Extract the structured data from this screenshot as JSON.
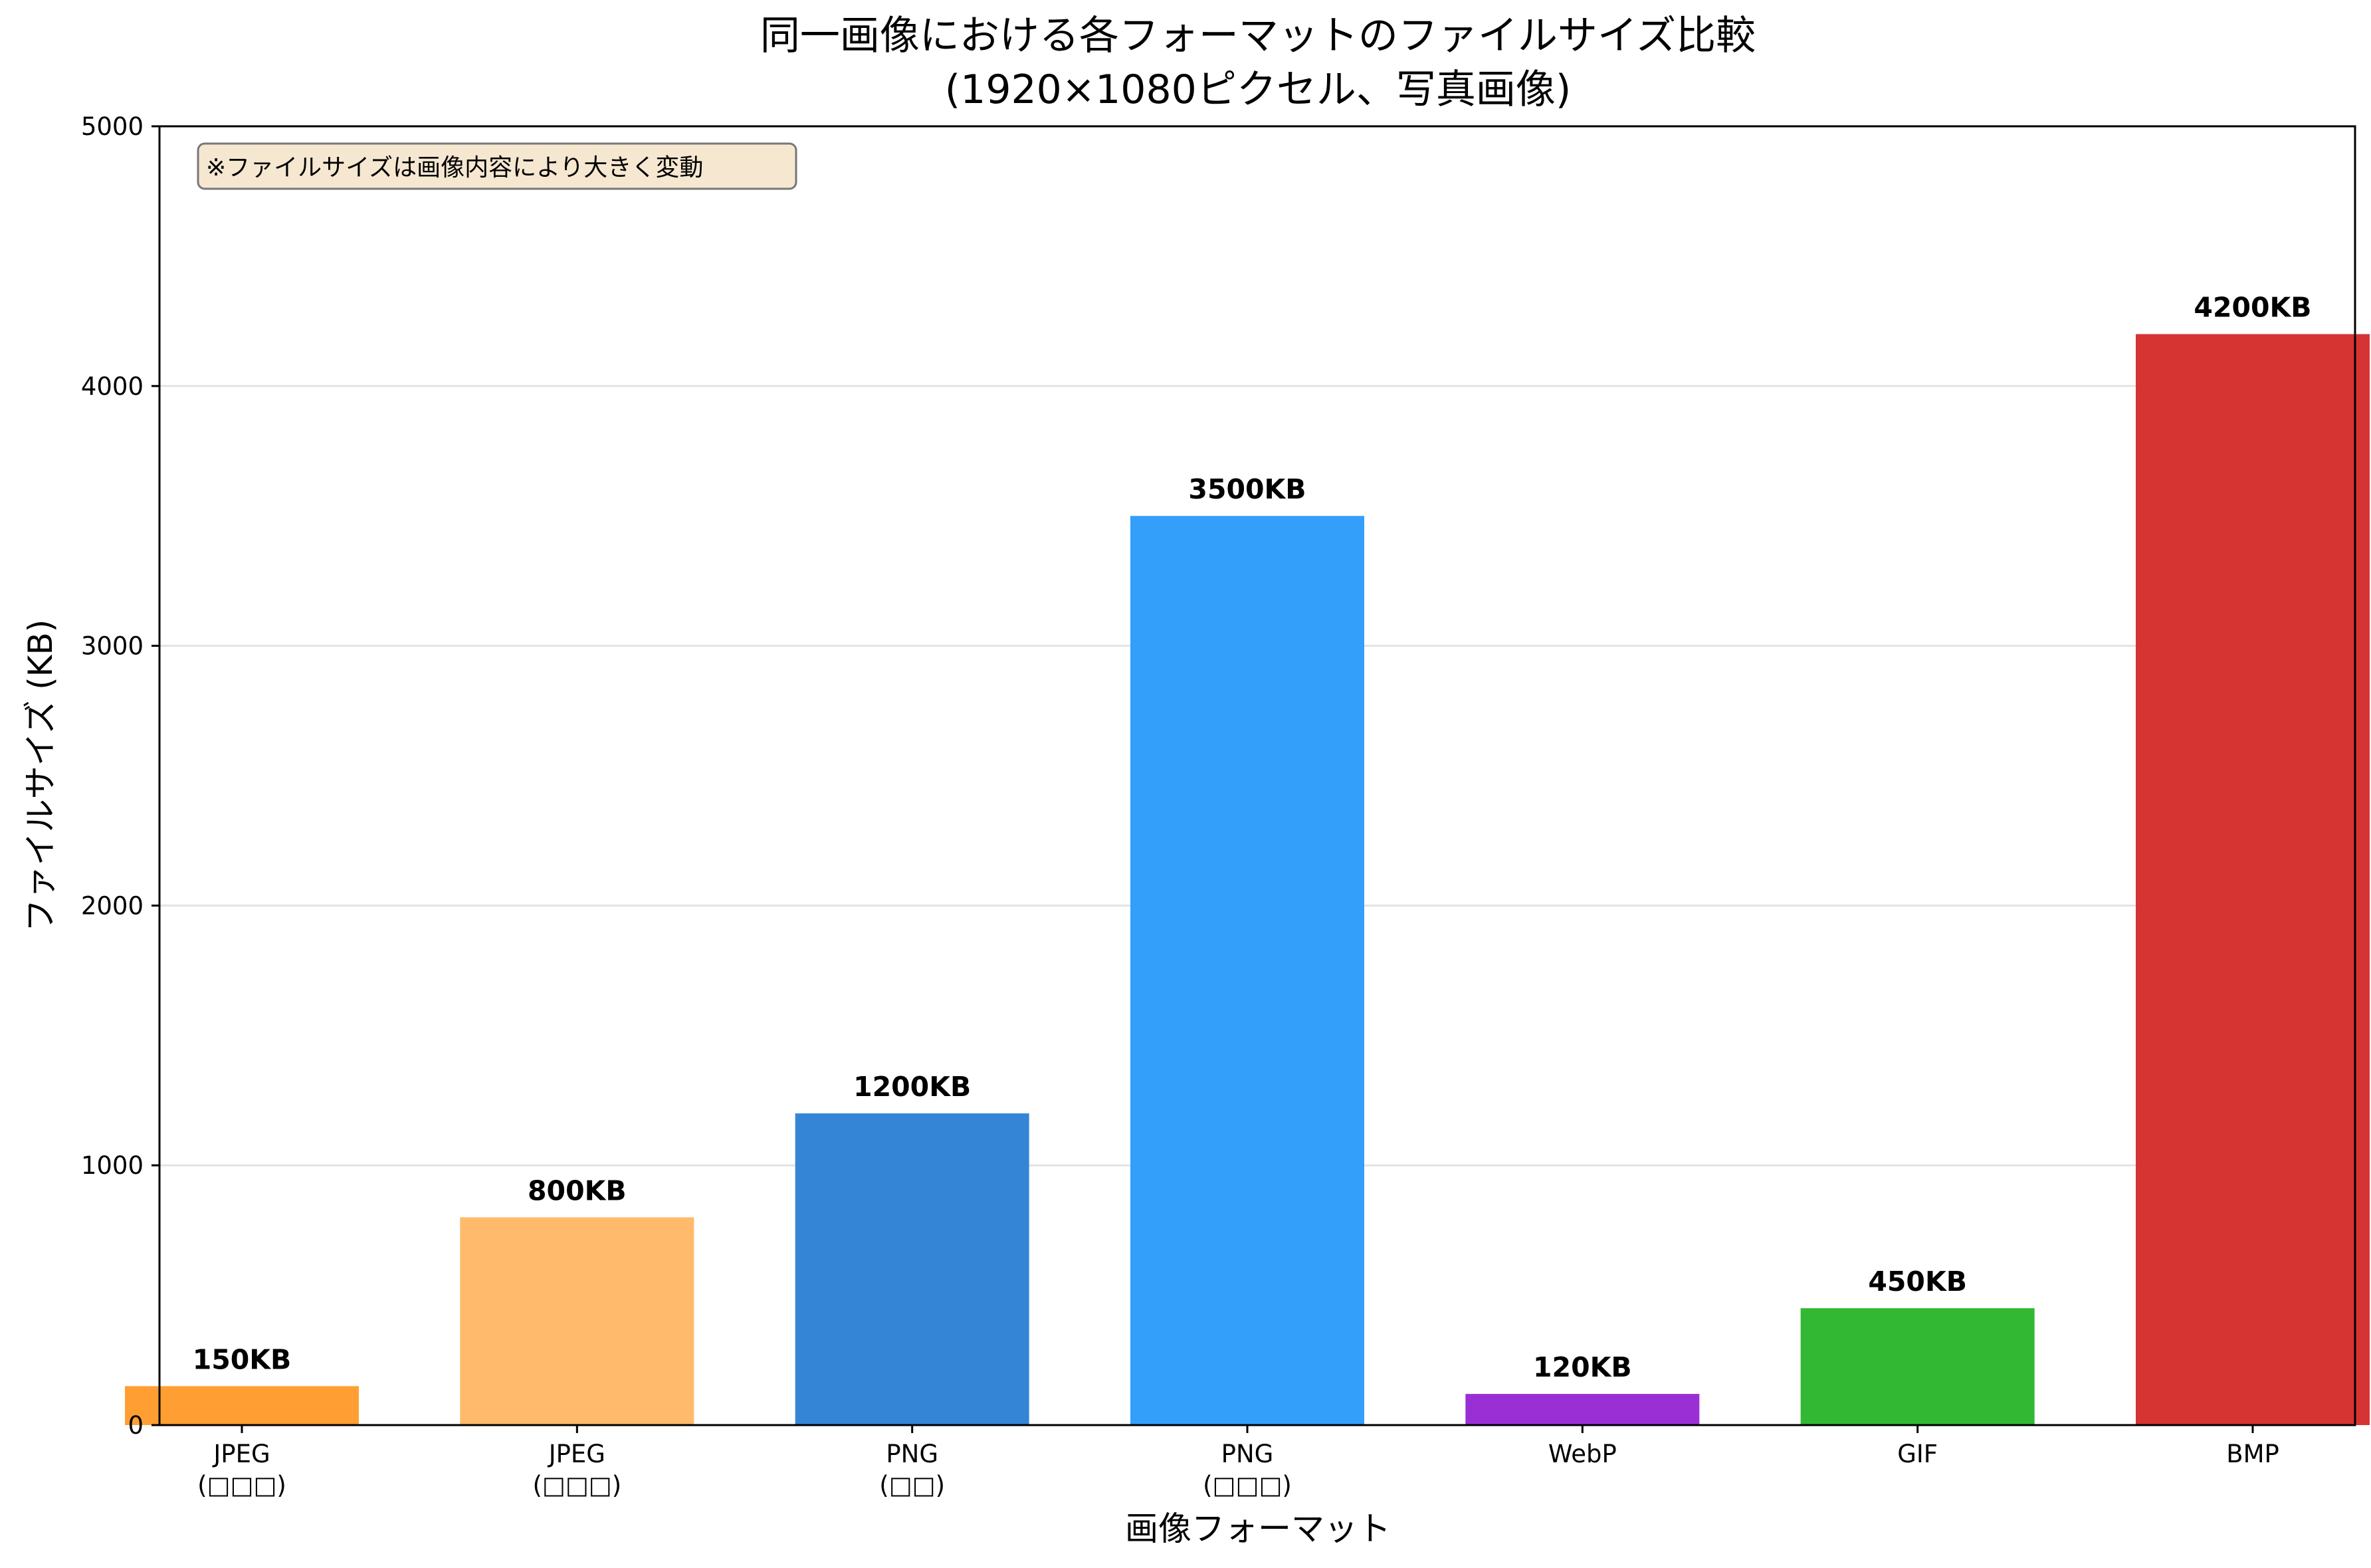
{
  "chart_data": {
    "type": "bar",
    "title_line1": "同一画像における各フォーマットのファイルサイズ比較",
    "title_line2": "(1920×1080ピクセル、写真画像)",
    "xlabel": "画像フォーマット",
    "ylabel": "ファイルサイズ (KB)",
    "ylim": [
      0,
      5000
    ],
    "yticks": [
      "0",
      "1000",
      "2000",
      "3000",
      "4000",
      "5000"
    ],
    "grid": "horizontal",
    "note": "※ファイルサイズは画像内容により大きく変動",
    "categories": [
      {
        "line1": "JPEG",
        "line2": "(□□□)"
      },
      {
        "line1": "JPEG",
        "line2": "(□□□)"
      },
      {
        "line1": "PNG",
        "line2": "(□□)"
      },
      {
        "line1": "PNG",
        "line2": "(□□□)"
      },
      {
        "line1": "WebP",
        "line2": ""
      },
      {
        "line1": "GIF",
        "line2": ""
      },
      {
        "line1": "BMP",
        "line2": ""
      }
    ],
    "values": [
      150,
      800,
      1200,
      3500,
      120,
      450,
      4200
    ],
    "value_labels": [
      "150KB",
      "800KB",
      "1200KB",
      "3500KB",
      "120KB",
      "450KB",
      "4200KB"
    ],
    "colors": [
      "#ff9f33",
      "#ffbb6b",
      "#3585d6",
      "#339ffb",
      "#9b2fd6",
      "#33b833",
      "#d63333"
    ]
  }
}
